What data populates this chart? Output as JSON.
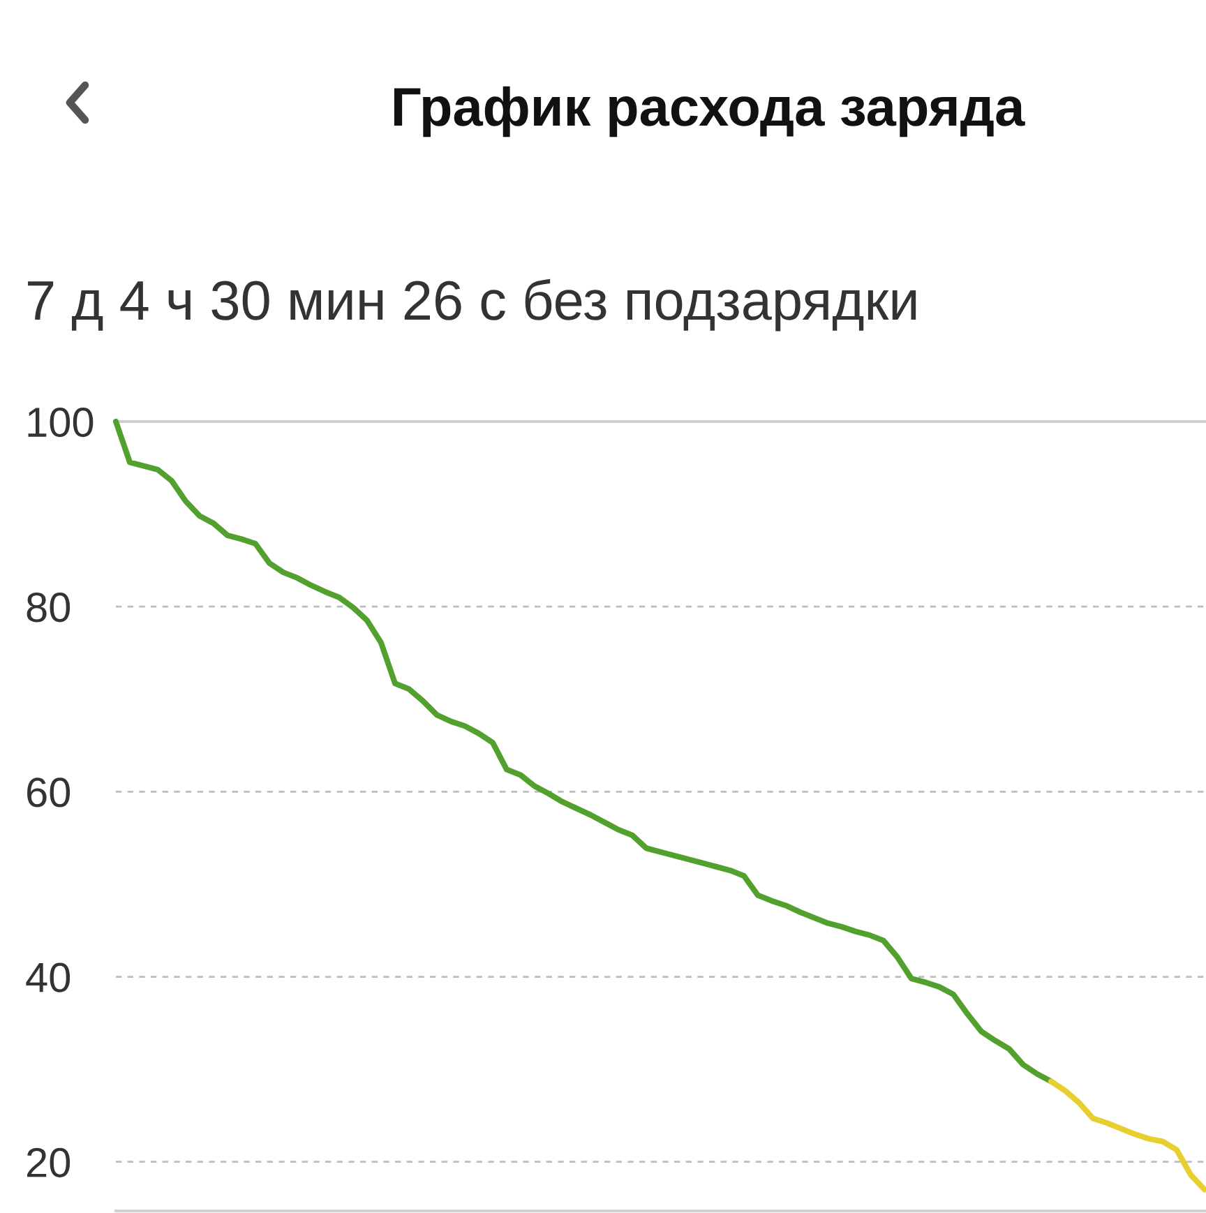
{
  "chart_data": {
    "type": "line",
    "title": "График расхода заряда",
    "subtitle": "7 д 4 ч 30 мин 26 с без подзарядки",
    "categories": [
      null,
      null,
      null,
      null,
      null,
      null,
      null,
      null,
      null,
      null,
      null,
      null,
      null,
      null,
      null,
      null,
      null,
      null,
      null,
      null,
      null,
      null,
      null,
      null,
      null,
      null,
      null,
      null,
      null,
      null,
      null,
      null,
      null,
      null,
      null,
      null,
      null,
      null,
      null,
      null,
      null,
      null,
      null,
      null,
      null,
      null,
      null,
      null,
      null,
      null,
      null,
      null,
      null,
      null,
      null,
      null,
      null,
      null,
      null,
      null,
      null,
      null,
      null,
      null,
      null,
      null,
      null,
      null,
      null,
      null,
      null,
      null,
      null,
      null,
      null,
      null,
      null,
      null,
      null
    ],
    "series": [
      {
        "color": "#52a02e",
        "values": [
          100,
          95.6,
          95.2,
          94.8,
          93.6,
          91.4,
          89.8,
          89.0,
          87.7,
          87.3,
          86.8,
          84.7,
          83.7,
          83.1,
          82.3,
          81.6,
          81.0,
          79.9,
          78.5,
          76.1,
          71.7,
          71.1,
          69.8,
          68.3,
          67.6,
          67.1,
          66.3,
          65.3,
          62.4,
          61.8,
          60.6,
          59.8,
          58.9,
          58.2,
          57.5,
          56.7,
          55.9,
          55.3,
          53.9,
          53.5,
          53.1,
          52.7,
          52.3,
          51.9,
          51.5,
          50.9,
          48.8,
          48.2,
          47.7,
          47.0,
          46.4,
          45.8,
          45.4,
          44.9,
          44.5,
          43.9,
          42.1,
          39.8,
          39.4,
          38.9,
          38.1,
          36.0,
          34.1,
          33.1,
          32.2,
          30.5,
          29.5,
          28.7,
          null,
          null,
          null,
          null,
          null,
          null,
          null,
          null,
          null,
          null,
          null
        ]
      },
      {
        "color": "#e6cf2e",
        "values": [
          null,
          null,
          null,
          null,
          null,
          null,
          null,
          null,
          null,
          null,
          null,
          null,
          null,
          null,
          null,
          null,
          null,
          null,
          null,
          null,
          null,
          null,
          null,
          null,
          null,
          null,
          null,
          null,
          null,
          null,
          null,
          null,
          null,
          null,
          null,
          null,
          null,
          null,
          null,
          null,
          null,
          null,
          null,
          null,
          null,
          null,
          null,
          null,
          null,
          null,
          null,
          null,
          null,
          null,
          null,
          null,
          null,
          null,
          null,
          null,
          null,
          null,
          null,
          null,
          null,
          null,
          null,
          28.7,
          27.7,
          26.4,
          24.7,
          24.2,
          23.6,
          23.0,
          22.5,
          22.2,
          21.3,
          18.6,
          17.0
        ]
      }
    ],
    "ylim": [
      14.7,
      100
    ],
    "yticks": [
      20,
      40,
      60,
      80,
      100
    ],
    "grid": "y",
    "tick_labels": "y"
  }
}
